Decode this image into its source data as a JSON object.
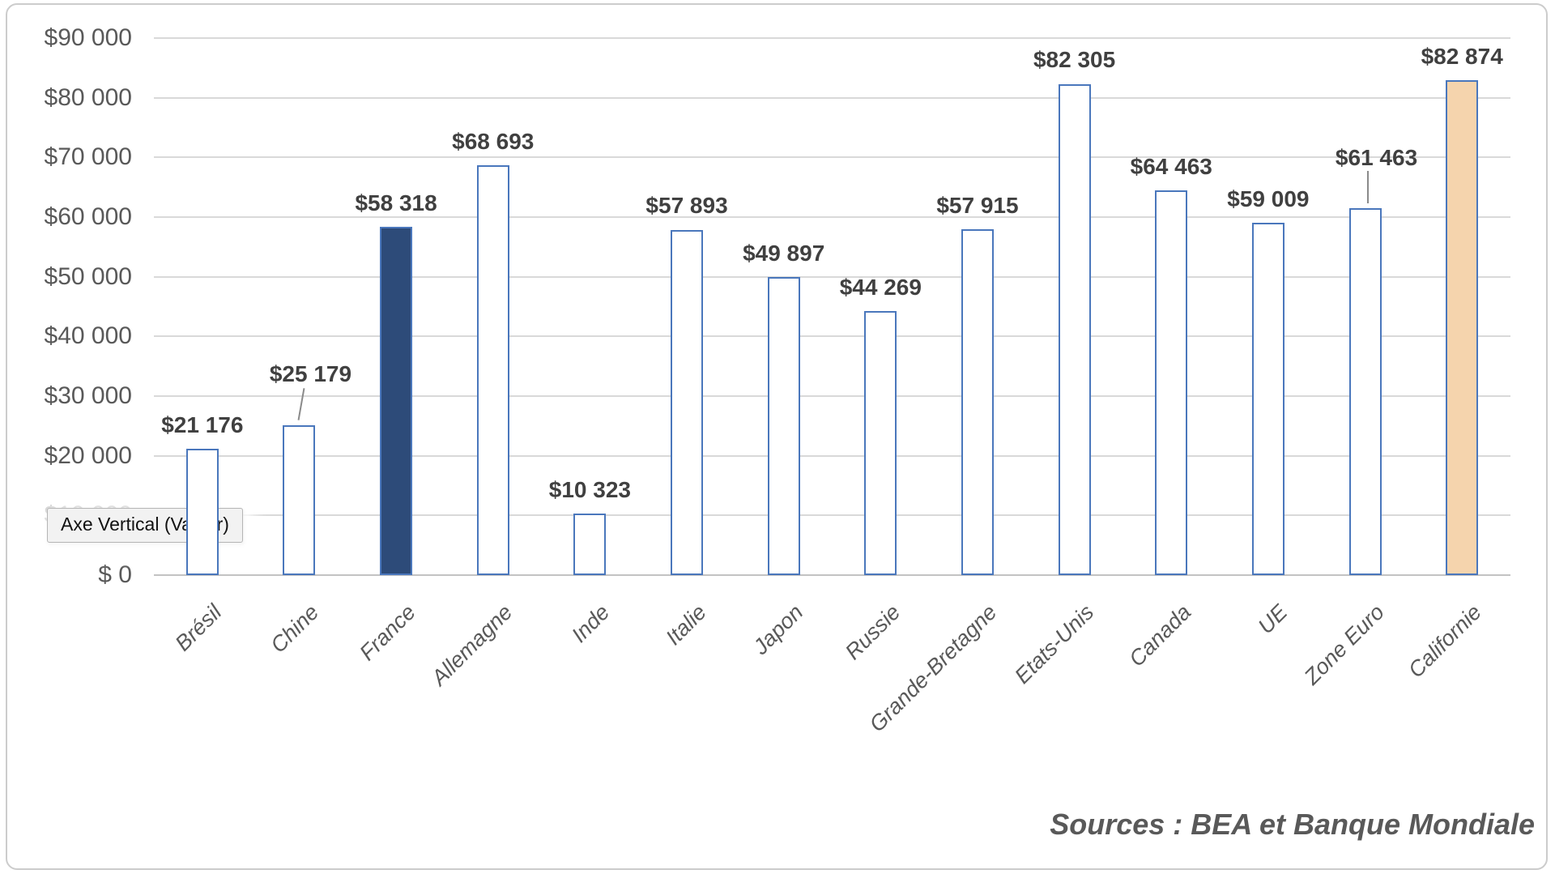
{
  "chart_data": {
    "type": "bar",
    "title": "",
    "categories": [
      "Brésil",
      "Chine",
      "France",
      "Allemagne",
      "Inde",
      "Italie",
      "Japon",
      "Russie",
      "Grande-Bretagne",
      "Etats-Unis",
      "Canada",
      "UE",
      "Zone Euro",
      "Californie"
    ],
    "values": [
      21176,
      25179,
      58318,
      68693,
      10323,
      57893,
      49897,
      44269,
      57915,
      82305,
      64463,
      59009,
      61463,
      82874
    ],
    "data_labels": [
      "$21 176",
      "$25 179",
      "$58 318",
      "$68 693",
      "$10 323",
      "$57 893",
      "$49 897",
      "$44 269",
      "$57 915",
      "$82 305",
      "$64 463",
      "$59 009",
      "$61 463",
      "$82 874"
    ],
    "y_ticks": [
      "$90 000",
      "$80 000",
      "$70 000",
      "$60 000",
      "$50 000",
      "$40 000",
      "$30 000",
      "$20 000",
      "$10 000",
      "$ 0"
    ],
    "ylim": [
      0,
      90000
    ],
    "xlabel": "",
    "ylabel": "",
    "grid": "horizontal",
    "legend": "none",
    "colors": {
      "bar_outline": "#4a77bc",
      "default_fill": "#ffffff",
      "highlight_fills": {
        "France": "#2d4b79",
        "Californie": "#f5d4ad"
      },
      "gridline": "#d9d9d9",
      "axis_text": "#595959",
      "label_text": "#404040"
    },
    "callout_labels": [
      "Chine",
      "Zone Euro"
    ]
  },
  "overlay_tooltip": {
    "text": "Axe Vertical (Valeur)"
  },
  "source_note": "Sources : BEA et Banque Mondiale"
}
